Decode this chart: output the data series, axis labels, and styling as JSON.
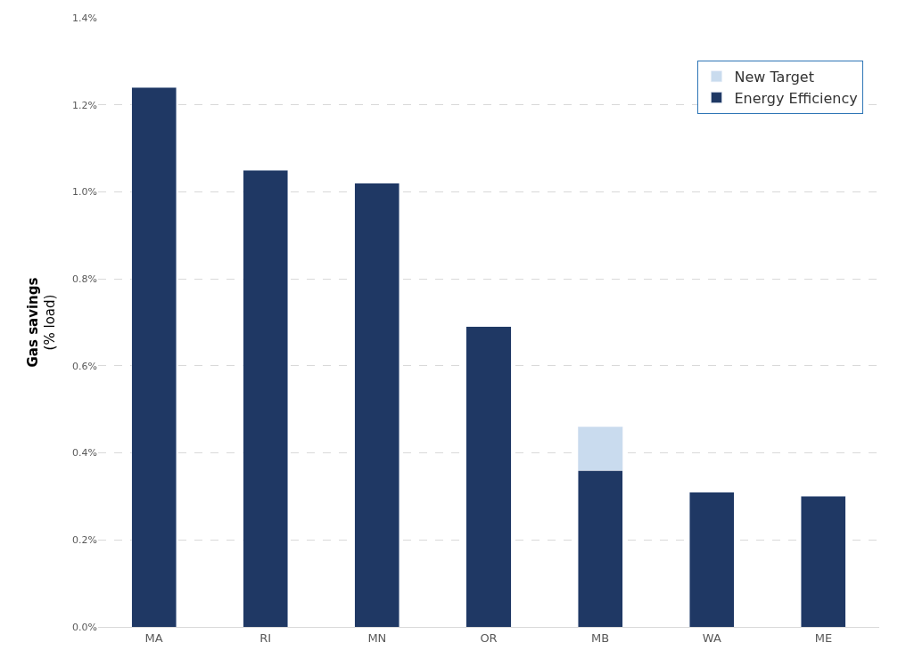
{
  "chart_data": {
    "type": "bar",
    "stacked": true,
    "ylabel": "Gas savings\n(% load)",
    "categories": [
      "MA",
      "RI",
      "MN",
      "OR",
      "MB",
      "WA",
      "ME"
    ],
    "series": [
      {
        "name": "Energy Efficiency",
        "color": "#1f3864",
        "values": [
          1.24,
          1.05,
          1.02,
          0.69,
          0.36,
          0.31,
          0.3
        ]
      },
      {
        "name": "New Target",
        "color": "#c9dbee",
        "values": [
          null,
          null,
          null,
          null,
          0.1,
          null,
          null
        ]
      }
    ],
    "ylim": [
      0,
      1.4
    ],
    "yticks": [
      {
        "value": 0,
        "label": "0.0%"
      },
      {
        "value": 0.2,
        "label": "0.2%"
      },
      {
        "value": 0.4,
        "label": "0.4%"
      },
      {
        "value": 0.6,
        "label": "0.6%"
      },
      {
        "value": 0.8,
        "label": "0.8%"
      },
      {
        "value": 1.0,
        "label": "1.0%"
      },
      {
        "value": 1.2,
        "label": "1.2%"
      },
      {
        "value": 1.4,
        "label": "1.4%"
      }
    ],
    "grid": "y",
    "legend": "top right"
  }
}
